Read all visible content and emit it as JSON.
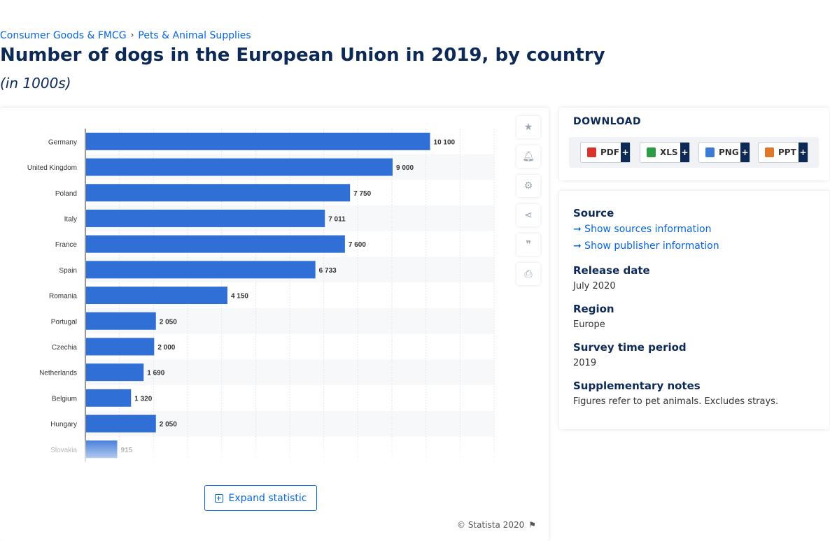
{
  "breadcrumb": {
    "item1": "Consumer Goods & FMCG",
    "sep": "›",
    "item2": "Pets & Animal Supplies"
  },
  "title": "Number of dogs in the European Union in 2019, by country",
  "subtitle": "(in 1000s)",
  "chart_data": {
    "type": "bar",
    "orientation": "horizontal",
    "categories": [
      "Germany",
      "United Kingdom",
      "Poland",
      "Italy",
      "France",
      "Spain",
      "Romania",
      "Portugal",
      "Czechia",
      "Netherlands",
      "Belgium",
      "Hungary",
      "Slovakia"
    ],
    "values": [
      10100,
      9000,
      7750,
      7011,
      7600,
      6733,
      4150,
      2050,
      2000,
      1690,
      1320,
      2050,
      915
    ],
    "value_labels": [
      "10 100",
      "9 000",
      "7 750",
      "7 011",
      "7 600",
      "6 733",
      "4 150",
      "2 050",
      "2 000",
      "1 690",
      "1 320",
      "2 050",
      "915"
    ],
    "xlim": [
      0,
      12000
    ],
    "grid": true,
    "bar_color": "#2f6fd6"
  },
  "expand_label": "Expand statistic",
  "credit": "© Statista 2020",
  "tools": [
    "star-icon",
    "bell-icon",
    "gear-icon",
    "share-icon",
    "quote-icon",
    "print-icon"
  ],
  "download": {
    "title": "DOWNLOAD",
    "buttons": [
      {
        "label": "PDF",
        "plus": "+",
        "color": "#d9342b"
      },
      {
        "label": "XLS",
        "plus": "+",
        "color": "#2e9b45"
      },
      {
        "label": "PNG",
        "plus": "+",
        "color": "#3a7bd5"
      },
      {
        "label": "PPT",
        "plus": "+",
        "color": "#e2772b"
      }
    ]
  },
  "info": {
    "source_h": "Source",
    "show_sources": "➞ Show sources information",
    "show_publisher": "➞ Show publisher information",
    "release_h": "Release date",
    "release_v": "July 2020",
    "region_h": "Region",
    "region_v": "Europe",
    "survey_h": "Survey time period",
    "survey_v": "2019",
    "notes_h": "Supplementary notes",
    "notes_v": "Figures refer to pet animals. Excludes strays."
  }
}
